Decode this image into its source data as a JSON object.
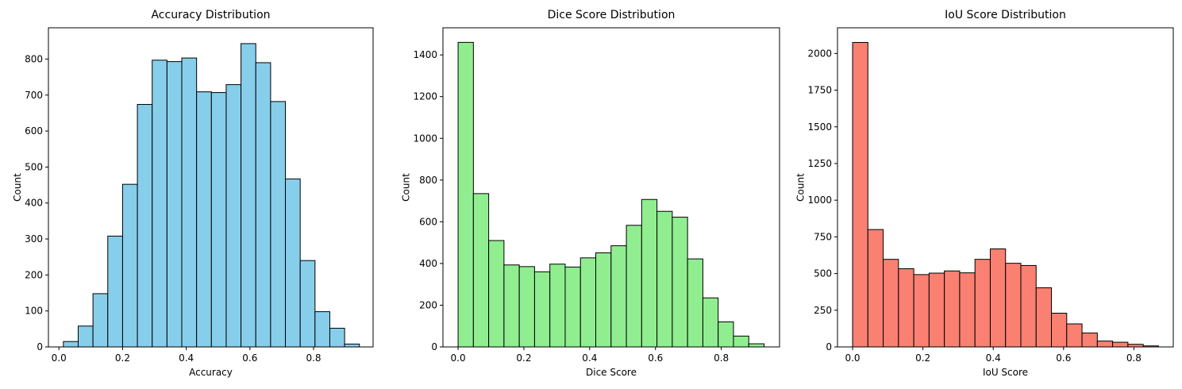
{
  "chart_data": [
    {
      "type": "bar",
      "title": "Accuracy Distribution",
      "xlabel": "Accuracy",
      "ylabel": "Count",
      "color": "#87CEEB",
      "xlim": [
        -0.033,
        0.987
      ],
      "ylim": [
        0,
        887
      ],
      "xticks": [
        0.0,
        0.2,
        0.4,
        0.6,
        0.8
      ],
      "xtick_labels": [
        "0.0",
        "0.2",
        "0.4",
        "0.6",
        "0.8"
      ],
      "yticks": [
        0,
        100,
        200,
        300,
        400,
        500,
        600,
        700,
        800
      ],
      "ytick_labels": [
        "0",
        "100",
        "200",
        "300",
        "400",
        "500",
        "600",
        "700",
        "800"
      ],
      "bin_edges": [
        0.014,
        0.0605,
        0.107,
        0.1535,
        0.2,
        0.2465,
        0.293,
        0.3395,
        0.386,
        0.4325,
        0.479,
        0.5255,
        0.572,
        0.6185,
        0.665,
        0.7115,
        0.758,
        0.8045,
        0.851,
        0.8975,
        0.944
      ],
      "values": [
        15,
        58,
        148,
        308,
        452,
        674,
        797,
        793,
        803,
        709,
        707,
        729,
        843,
        790,
        682,
        467,
        240,
        98,
        52,
        8
      ]
    },
    {
      "type": "bar",
      "title": "Dice Score Distribution",
      "xlabel": "Dice Score",
      "ylabel": "Count",
      "color": "#90EE90",
      "xlim": [
        -0.046,
        0.977
      ],
      "ylim": [
        0,
        1530
      ],
      "xticks": [
        0.0,
        0.2,
        0.4,
        0.6,
        0.8
      ],
      "xtick_labels": [
        "0.0",
        "0.2",
        "0.4",
        "0.6",
        "0.8"
      ],
      "yticks": [
        0,
        200,
        400,
        600,
        800,
        1000,
        1200,
        1400
      ],
      "ytick_labels": [
        "0",
        "200",
        "400",
        "600",
        "800",
        "1000",
        "1200",
        "1400"
      ],
      "bin_edges": [
        0.0,
        0.0465,
        0.093,
        0.1395,
        0.186,
        0.2325,
        0.279,
        0.3255,
        0.372,
        0.4185,
        0.465,
        0.5115,
        0.558,
        0.6045,
        0.651,
        0.6975,
        0.744,
        0.7905,
        0.837,
        0.8835,
        0.93
      ],
      "values": [
        1460,
        735,
        510,
        393,
        385,
        360,
        397,
        383,
        427,
        451,
        485,
        583,
        707,
        650,
        622,
        422,
        235,
        120,
        52,
        15
      ]
    },
    {
      "type": "bar",
      "title": "IoU Score Distribution",
      "xlabel": "IoU Score",
      "ylabel": "Count",
      "color": "#FA8072",
      "xlim": [
        -0.043,
        0.912
      ],
      "ylim": [
        0,
        2175
      ],
      "xticks": [
        0.0,
        0.2,
        0.4,
        0.6,
        0.8
      ],
      "xtick_labels": [
        "0.0",
        "0.2",
        "0.4",
        "0.6",
        "0.8"
      ],
      "yticks": [
        0,
        250,
        500,
        750,
        1000,
        1250,
        1500,
        1750,
        2000
      ],
      "ytick_labels": [
        "0",
        "250",
        "500",
        "750",
        "1000",
        "1250",
        "1500",
        "1750",
        "2000"
      ],
      "bin_edges": [
        0.0,
        0.0435,
        0.087,
        0.1305,
        0.174,
        0.2175,
        0.261,
        0.3045,
        0.348,
        0.3915,
        0.435,
        0.4785,
        0.522,
        0.5655,
        0.609,
        0.6525,
        0.696,
        0.7395,
        0.783,
        0.8265,
        0.87
      ],
      "values": [
        2075,
        800,
        597,
        533,
        493,
        503,
        518,
        505,
        597,
        668,
        570,
        555,
        403,
        230,
        157,
        95,
        40,
        32,
        18,
        7
      ]
    }
  ]
}
